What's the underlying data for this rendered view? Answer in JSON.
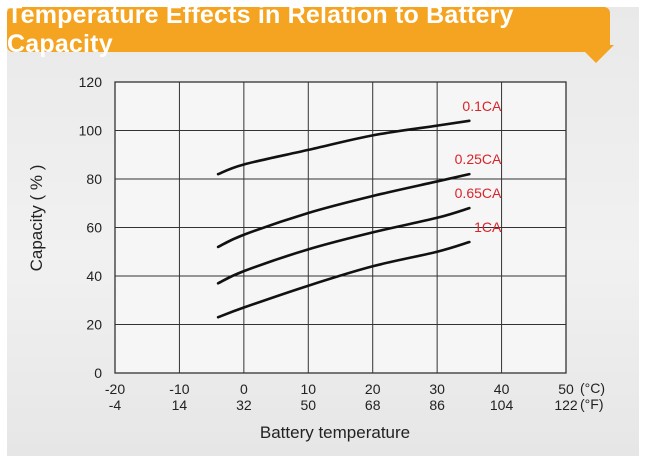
{
  "chart_data": {
    "type": "line",
    "title": "Temperature Effects in Relation to Battery Capacity",
    "xlabel": "Battery temperature",
    "ylabel": "Capacity ( % )",
    "x_unit_primary": "(°C)",
    "x_unit_secondary": "(°F)",
    "xlim": [
      -20,
      50
    ],
    "ylim": [
      0,
      120
    ],
    "x_ticks_c": [
      "-20",
      "-10",
      "0",
      "10",
      "20",
      "30",
      "40",
      "50"
    ],
    "x_ticks_f": [
      "-4",
      "14",
      "32",
      "50",
      "68",
      "86",
      "104",
      "122"
    ],
    "y_ticks": [
      "0",
      "20",
      "40",
      "60",
      "80",
      "100",
      "120"
    ],
    "grid": true,
    "series_color": "#d8252a",
    "series": [
      {
        "name": "0.1CA",
        "x": [
          -4,
          0,
          10,
          20,
          30,
          35
        ],
        "y": [
          82,
          86,
          92,
          98,
          102,
          104
        ]
      },
      {
        "name": "0.25CA",
        "x": [
          -4,
          0,
          10,
          20,
          30,
          35
        ],
        "y": [
          52,
          57,
          66,
          73,
          79,
          82
        ]
      },
      {
        "name": "0.65CA",
        "x": [
          -4,
          0,
          10,
          20,
          30,
          35
        ],
        "y": [
          37,
          42,
          51,
          58,
          64,
          68
        ]
      },
      {
        "name": "1CA",
        "x": [
          -4,
          0,
          10,
          20,
          30,
          35
        ],
        "y": [
          23,
          27,
          36,
          44,
          50,
          54
        ]
      }
    ]
  }
}
